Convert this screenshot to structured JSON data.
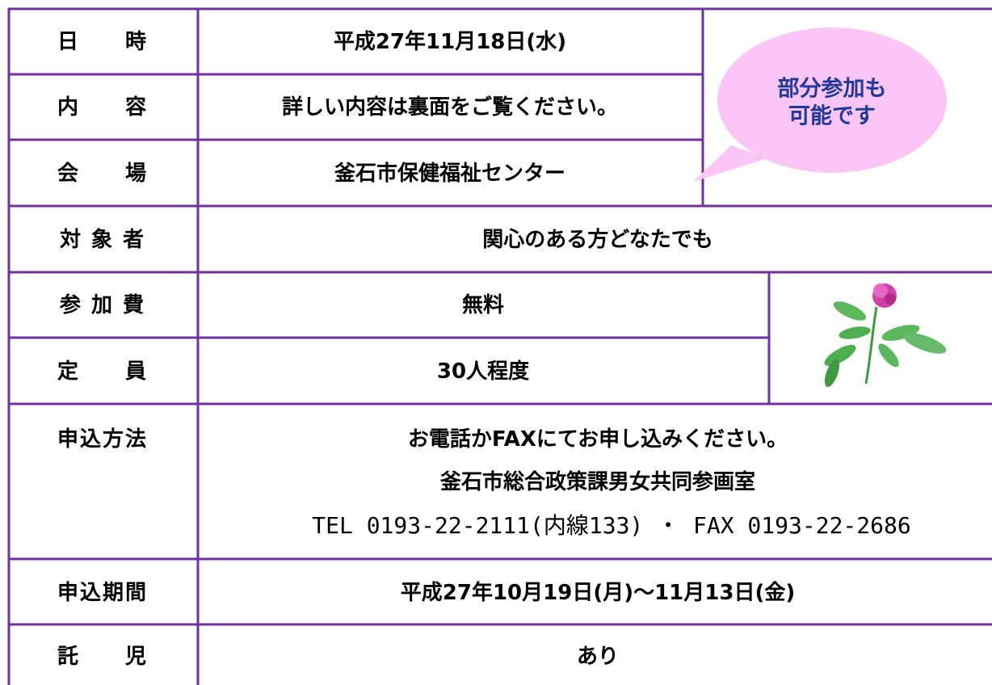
{
  "table": {
    "rows": [
      {
        "label": "日　　時",
        "value": "平成27年11月18日(水)"
      },
      {
        "label": "内　　容",
        "value": "詳しい内容は裏面をご覧ください。"
      },
      {
        "label": "会　　場",
        "value": "釜石市保健福祉センター"
      },
      {
        "label": "対 象 者",
        "value": "関心のある方どなたでも"
      },
      {
        "label": "参 加 費",
        "value": "無料"
      },
      {
        "label": "定　　員",
        "value": "30人程度"
      },
      {
        "label": "申込方法",
        "lines": [
          "お電話かFAXにてお申し込みください。",
          "釜石市総合政策課男女共同参画室",
          "TEL 0193-22-2111(内線133) ・ FAX 0193-22-2686"
        ]
      },
      {
        "label": "申込期間",
        "value": "平成27年10月19日(月)～11月13日(金)"
      },
      {
        "label": "託　　児",
        "value": "あり"
      }
    ]
  },
  "bubble": {
    "lines": [
      "部分参加も",
      "可能です"
    ]
  }
}
